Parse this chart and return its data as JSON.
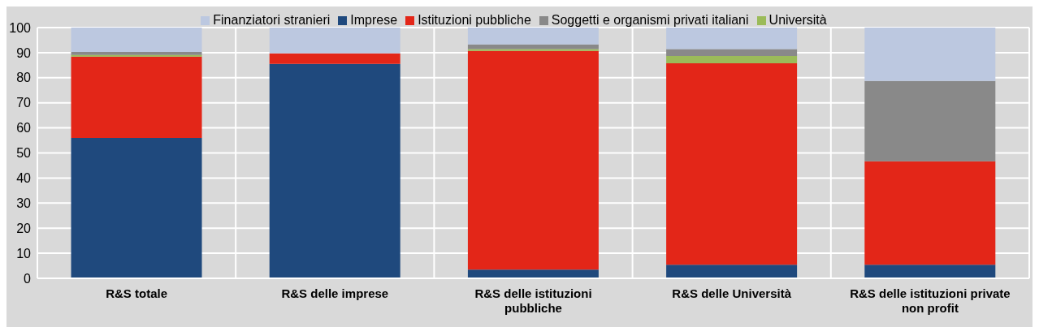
{
  "chart_data": {
    "type": "bar",
    "stacked": true,
    "categories": [
      "R&S totale",
      "R&S delle imprese",
      "R&S delle istituzioni pubbliche",
      "R&S delle Università",
      "R&S delle istituzioni private non profit"
    ],
    "series": [
      {
        "name": "Imprese",
        "color": "#1f497d",
        "values": [
          56,
          85.5,
          3.5,
          5.4,
          5.4
        ]
      },
      {
        "name": "Istituzioni pubbliche",
        "color": "#e32618",
        "values": [
          32.4,
          4.2,
          87.2,
          80.4,
          41.3
        ]
      },
      {
        "name": "Università",
        "color": "#9bbb59",
        "values": [
          0.7,
          0,
          0.7,
          2.9,
          0
        ]
      },
      {
        "name": "Soggetti e organismi privati italiani",
        "color": "#898989",
        "values": [
          1.2,
          0,
          1.9,
          2.7,
          32
        ]
      },
      {
        "name": "Finanziatori stranieri",
        "color": "#bcc8e0",
        "values": [
          9.7,
          10.3,
          6.7,
          8.6,
          21.3
        ]
      }
    ],
    "ylim": [
      0,
      100
    ],
    "yticks": [
      0,
      10,
      20,
      30,
      40,
      50,
      60,
      70,
      80,
      90,
      100
    ],
    "grid": true,
    "legend": "top"
  }
}
